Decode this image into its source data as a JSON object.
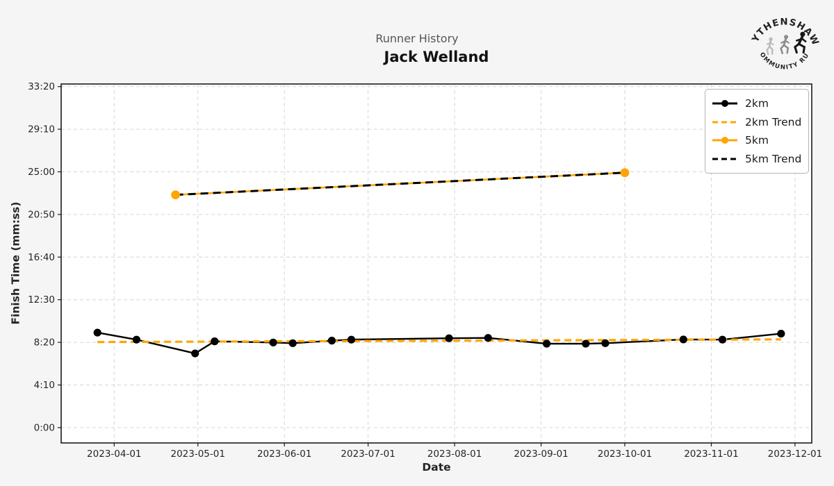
{
  "header": {
    "subtitle": "Runner History",
    "title": "Jack Welland"
  },
  "logo": {
    "top_text": "WYTHENSHAWE",
    "bottom_text": "COMMUNITY RUN"
  },
  "colors": {
    "accent_orange": "#FFA500",
    "line_black": "#000000",
    "figure_bg": "#f5f5f5",
    "plot_bg": "#ffffff",
    "grid": "#d6d6d6",
    "axis": "#1a1a1a",
    "title_gray": "#555555",
    "tick_text": "#262626"
  },
  "chart_data": {
    "type": "line",
    "title": "Runner History",
    "subtitle_person": "Jack Welland",
    "xlabel": "Date",
    "ylabel": "Finish Time (mm:ss)",
    "grid": true,
    "legend_position": "upper right",
    "x_ticks": [
      "2023-04-01",
      "2023-05-01",
      "2023-06-01",
      "2023-07-01",
      "2023-08-01",
      "2023-09-01",
      "2023-10-01",
      "2023-11-01",
      "2023-12-01"
    ],
    "x_range": [
      "2023-03-13",
      "2023-12-07"
    ],
    "y_ticks": [
      {
        "label": "0:00",
        "seconds": 0
      },
      {
        "label": "4:10",
        "seconds": 250
      },
      {
        "label": "8:20",
        "seconds": 500
      },
      {
        "label": "12:30",
        "seconds": 750
      },
      {
        "label": "16:40",
        "seconds": 1000
      },
      {
        "label": "20:50",
        "seconds": 1250
      },
      {
        "label": "25:00",
        "seconds": 1500
      },
      {
        "label": "29:10",
        "seconds": 1750
      },
      {
        "label": "33:20",
        "seconds": 2000
      }
    ],
    "y_range_seconds": [
      -90,
      2015
    ],
    "series": [
      {
        "name": "2km",
        "color": "#000000",
        "line": "solid",
        "marker": true,
        "marker_r": 5.6,
        "width": 2.4,
        "points": [
          {
            "date": "2023-03-26",
            "time": "9:17"
          },
          {
            "date": "2023-04-09",
            "time": "8:36"
          },
          {
            "date": "2023-04-30",
            "time": "7:15"
          },
          {
            "date": "2023-05-07",
            "time": "8:26"
          },
          {
            "date": "2023-05-28",
            "time": "8:19"
          },
          {
            "date": "2023-06-04",
            "time": "8:15"
          },
          {
            "date": "2023-06-18",
            "time": "8:30"
          },
          {
            "date": "2023-06-25",
            "time": "8:36"
          },
          {
            "date": "2023-07-30",
            "time": "8:44"
          },
          {
            "date": "2023-08-13",
            "time": "8:46"
          },
          {
            "date": "2023-09-03",
            "time": "8:12"
          },
          {
            "date": "2023-09-17",
            "time": "8:12"
          },
          {
            "date": "2023-09-24",
            "time": "8:15"
          },
          {
            "date": "2023-10-22",
            "time": "8:37"
          },
          {
            "date": "2023-11-05",
            "time": "8:36"
          },
          {
            "date": "2023-11-26",
            "time": "9:11"
          }
        ]
      },
      {
        "name": "2km Trend",
        "color": "#FFA500",
        "line": "dashed",
        "marker": false,
        "width": 3.2,
        "dash": "10 6",
        "fit_of": "2km"
      },
      {
        "name": "5km",
        "color": "#FFA500",
        "line": "solid",
        "marker": true,
        "marker_r": 6.4,
        "width": 2.6,
        "points": [
          {
            "date": "2023-04-23",
            "time": "22:45"
          },
          {
            "date": "2023-10-01",
            "time": "24:55"
          }
        ]
      },
      {
        "name": "5km Trend",
        "color": "#000000",
        "line": "dashed",
        "marker": false,
        "width": 3.0,
        "dash": "11 7",
        "fit_of": "5km"
      }
    ]
  }
}
